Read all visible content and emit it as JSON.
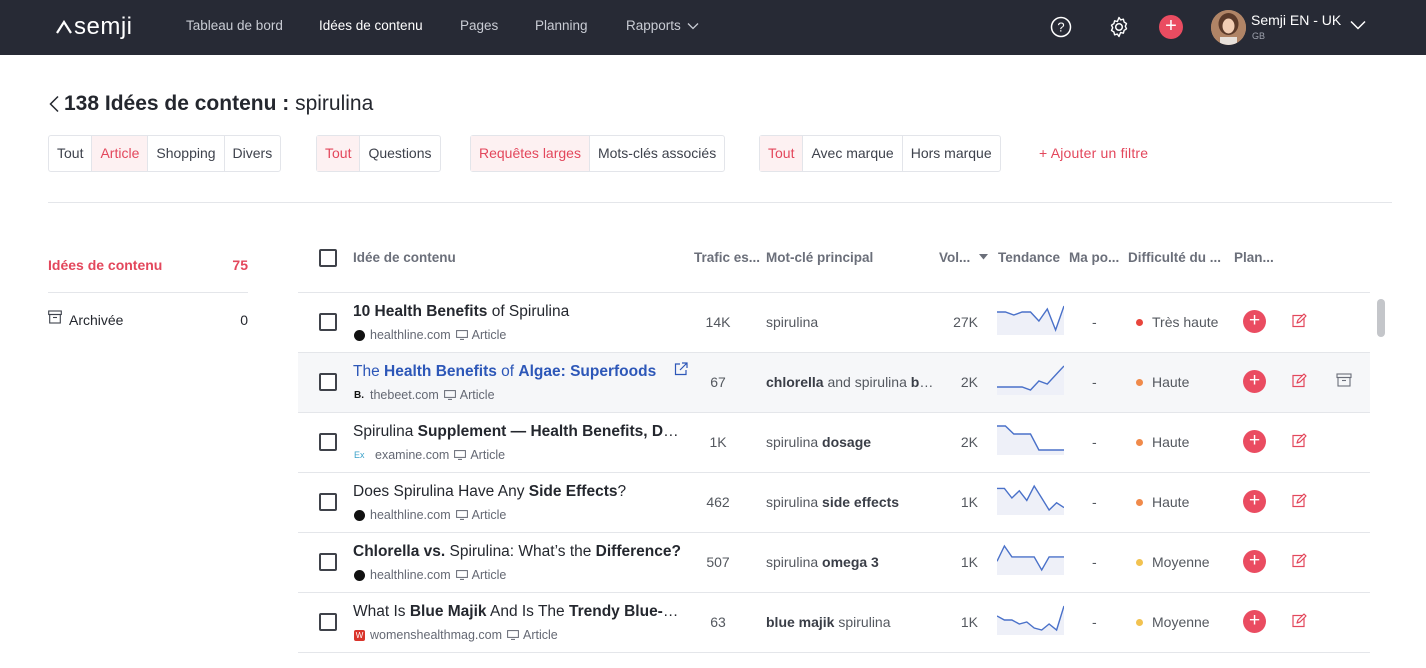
{
  "app": {
    "logo_text": "semji"
  },
  "nav": {
    "items": [
      "Tableau de bord",
      "Idées de contenu",
      "Pages",
      "Planning",
      "Rapports"
    ],
    "active": "Idées de contenu"
  },
  "user": {
    "name": "Semji EN - UK",
    "sub": "GB"
  },
  "page": {
    "title_bold": "138 Idées de contenu :",
    "title_rest": " spirulina"
  },
  "filters": {
    "g1": [
      "Tout",
      "Article",
      "Shopping",
      "Divers"
    ],
    "g2": [
      "Tout",
      "Questions"
    ],
    "g3": [
      "Requêtes larges",
      "Mots-clés associés"
    ],
    "g4": [
      "Tout",
      "Avec marque",
      "Hors marque"
    ],
    "add": "+ Ajouter un filtre"
  },
  "sidebar": {
    "ideas_label": "Idées de contenu",
    "ideas_count": "75",
    "archived_label": "Archivée",
    "archived_count": "0"
  },
  "table": {
    "headers": {
      "idea": "Idée de contenu",
      "traffic": "Trafic es...",
      "keyword": "Mot-clé principal",
      "volume": "Vol...",
      "trend": "Tendance",
      "position": "Ma po...",
      "difficulty": "Difficulté du ...",
      "plan": "Plan..."
    },
    "rows": [
      {
        "title_html": "<b>10 Health Benefits</b> of Spirulina",
        "source": "healthline.com",
        "type": "Article",
        "traffic": "14K",
        "keyword_html": "spirulina",
        "volume": "27K",
        "trend": [
          3,
          3,
          4,
          3,
          3,
          6,
          2,
          9,
          1
        ],
        "position": "-",
        "difficulty": "Très haute",
        "difficulty_color": "#e8453c"
      },
      {
        "title_html": "The <b>Health Benefits</b> of <b>Algae: Superfoods</b>",
        "source": "thebeet.com",
        "type": "Article",
        "traffic": "67",
        "keyword_html": "<b>chlorella</b> and spirulina <b>benefits</b>",
        "volume": "2K",
        "trend": [
          9,
          9,
          9,
          9,
          10,
          7,
          8,
          5,
          2
        ],
        "position": "-",
        "difficulty": "Haute",
        "difficulty_color": "#f08a4b"
      },
      {
        "title_html": "Spirulina <b>Supplement — Health Benefits, Dosage</b>",
        "source": "examine.com",
        "type": "Article",
        "traffic": "1K",
        "keyword_html": "spirulina <b>dosage</b>",
        "volume": "2K",
        "trend": [
          1,
          1,
          4,
          4,
          4,
          10,
          10,
          10,
          10
        ],
        "position": "-",
        "difficulty": "Haute",
        "difficulty_color": "#f08a4b"
      },
      {
        "title_html": "Does Spirulina Have Any <b>Side Effects</b>?",
        "source": "healthline.com",
        "type": "Article",
        "traffic": "462",
        "keyword_html": "spirulina <b>side effects</b>",
        "volume": "1K",
        "trend": [
          3,
          3,
          7,
          4,
          8,
          2,
          7,
          12,
          9,
          11
        ],
        "position": "-",
        "difficulty": "Haute",
        "difficulty_color": "#f08a4b"
      },
      {
        "title_html": "<b>Chlorella vs.</b> Spirulina: What’s the <b>Difference?</b>",
        "source": "healthline.com",
        "type": "Article",
        "traffic": "507",
        "keyword_html": "spirulina <b>omega 3</b>",
        "volume": "1K",
        "trend": [
          8,
          1,
          6,
          6,
          6,
          6,
          12,
          6,
          6,
          6
        ],
        "position": "-",
        "difficulty": "Moyenne",
        "difficulty_color": "#f2c250"
      },
      {
        "title_html": "What Is <b>Blue Majik</b> And Is The <b>Trendy Blue-Green</b>",
        "source": "womenshealthmag.com",
        "type": "Article",
        "traffic": "63",
        "keyword_html": "<b>blue majik</b> spirulina",
        "volume": "1K",
        "trend": [
          7,
          9,
          9,
          11,
          10,
          13,
          14,
          11,
          14,
          2
        ],
        "position": "-",
        "difficulty": "Moyenne",
        "difficulty_color": "#f2c250"
      }
    ]
  }
}
